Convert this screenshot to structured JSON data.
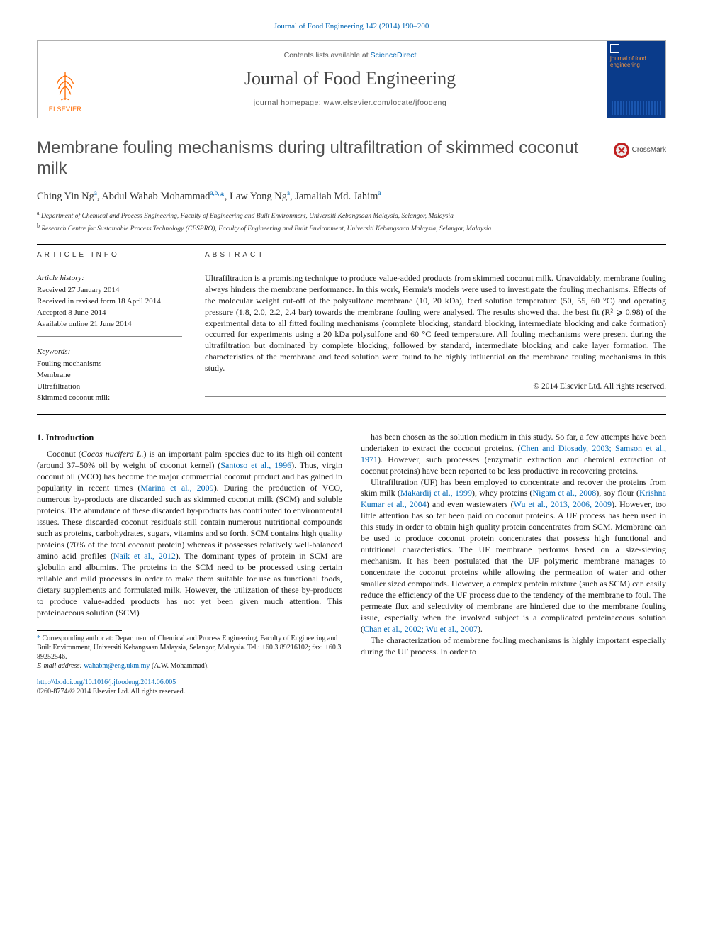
{
  "journal_ref": "Journal of Food Engineering 142 (2014) 190–200",
  "header": {
    "contents_prefix": "Contents lists available at ",
    "contents_link": "ScienceDirect",
    "journal_name": "Journal of Food Engineering",
    "homepage_prefix": "journal homepage: ",
    "homepage_url": "www.elsevier.com/locate/jfoodeng",
    "publisher": "ELSEVIER",
    "cover_label": "journal of food engineering"
  },
  "crossmark_label": "CrossMark",
  "title": "Membrane fouling mechanisms during ultrafiltration of skimmed coconut milk",
  "authors_html": "Ching Yin Ng<sup>a</sup>, Abdul Wahab Mohammad<sup>a,b,</sup><span class='corr'>*</span>, Law Yong Ng<sup>a</sup>, Jamaliah Md. Jahim<sup>a</sup>",
  "affiliations": [
    {
      "sup": "a",
      "text": "Department of Chemical and Process Engineering, Faculty of Engineering and Built Environment, Universiti Kebangsaan Malaysia, Selangor, Malaysia"
    },
    {
      "sup": "b",
      "text": "Research Centre for Sustainable Process Technology (CESPRO), Faculty of Engineering and Built Environment, Universiti Kebangsaan Malaysia, Selangor, Malaysia"
    }
  ],
  "info_head": "ARTICLE INFO",
  "abs_head": "ABSTRACT",
  "history_head": "Article history:",
  "history": [
    "Received 27 January 2014",
    "Received in revised form 18 April 2014",
    "Accepted 8 June 2014",
    "Available online 21 June 2014"
  ],
  "keywords_head": "Keywords:",
  "keywords": [
    "Fouling mechanisms",
    "Membrane",
    "Ultrafiltration",
    "Skimmed coconut milk"
  ],
  "abstract": "Ultrafiltration is a promising technique to produce value-added products from skimmed coconut milk. Unavoidably, membrane fouling always hinders the membrane performance. In this work, Hermia's models were used to investigate the fouling mechanisms. Effects of the molecular weight cut-off of the polysulfone membrane (10, 20 kDa), feed solution temperature (50, 55, 60 °C) and operating pressure (1.8, 2.0, 2.2, 2.4 bar) towards the membrane fouling were analysed. The results showed that the best fit (R² ⩾ 0.98) of the experimental data to all fitted fouling mechanisms (complete blocking, standard blocking, intermediate blocking and cake formation) occurred for experiments using a 20 kDa polysulfone and 60 °C feed temperature. All fouling mechanisms were present during the ultrafiltration but dominated by complete blocking, followed by standard, intermediate blocking and cake layer formation. The characteristics of the membrane and feed solution were found to be highly influential on the membrane fouling mechanisms in this study.",
  "copyright": "© 2014 Elsevier Ltd. All rights reserved.",
  "section_heading": "1. Introduction",
  "para1_html": "Coconut (<i>Cocos nucifera L.</i>) is an important palm species due to its high oil content (around 37–50% oil by weight of coconut kernel) (<span class='link'>Santoso et al., 1996</span>). Thus, virgin coconut oil (VCO) has become the major commercial coconut product and has gained in popularity in recent times (<span class='link'>Marina et al., 2009</span>). During the production of VCO, numerous by-products are discarded such as skimmed coconut milk (SCM) and soluble proteins. The abundance of these discarded by-products has contributed to environmental issues. These discarded coconut residuals still contain numerous nutritional compounds such as proteins, carbohydrates, sugars, vitamins and so forth. SCM contains high quality proteins (70% of the total coconut protein) whereas it possesses relatively well-balanced amino acid profiles (<span class='link'>Naik et al., 2012</span>). The dominant types of protein in SCM are globulin and albumins. The proteins in the SCM need to be processed using certain reliable and mild processes in order to make them suitable for use as functional foods, dietary supplements and formulated milk. However, the utilization of these by-products to produce value-added products has not yet been given much attention. This proteinaceous solution (SCM)",
  "para1b_html": "has been chosen as the solution medium in this study. So far, a few attempts have been undertaken to extract the coconut proteins. (<span class='link'>Chen and Diosady, 2003; Samson et al., 1971</span>). However, such processes (enzymatic extraction and chemical extraction of coconut proteins) have been reported to be less productive in recovering proteins.",
  "para2_html": "Ultrafiltration (UF) has been employed to concentrate and recover the proteins from skim milk (<span class='link'>Makardij et al., 1999</span>), whey proteins (<span class='link'>Nigam et al., 2008</span>), soy flour (<span class='link'>Krishna Kumar et al., 2004</span>) and even wastewaters (<span class='link'>Wu et al., 2013, 2006, 2009</span>). However, too little attention has so far been paid on coconut proteins. A UF process has been used in this study in order to obtain high quality protein concentrates from SCM. Membrane can be used to produce coconut protein concentrates that possess high functional and nutritional characteristics. The UF membrane performs based on a size-sieving mechanism. It has been postulated that the UF polymeric membrane manages to concentrate the coconut proteins while allowing the permeation of water and other smaller sized compounds. However, a complex protein mixture (such as SCM) can easily reduce the efficiency of the UF process due to the tendency of the membrane to foul. The permeate flux and selectivity of membrane are hindered due to the membrane fouling issue, especially when the involved subject is a complicated proteinaceous solution (<span class='link'>Chan et al., 2002; Wu et al., 2007</span>).",
  "para3_html": "The characterization of membrane fouling mechanisms is highly important especially during the UF process. In order to",
  "footnote": {
    "corr_html": "<span class='corr-mark'>*</span> Corresponding author at: Department of Chemical and Process Engineering, Faculty of Engineering and Built Environment, Universiti Kebangsaan Malaysia, Selangor, Malaysia. Tel.: +60 3 89216102; fax: +60 3 89252546.",
    "email_label": "E-mail address:",
    "email": "wahabm@eng.ukm.my",
    "email_person": "(A.W. Mohammad)."
  },
  "doi": "http://dx.doi.org/10.1016/j.jfoodeng.2014.06.005",
  "issn_line": "0260-8774/© 2014 Elsevier Ltd. All rights reserved.",
  "colors": {
    "link": "#0066b3",
    "elsevier_orange": "#ff6a00",
    "cover_bg": "#0a3b8a",
    "cover_accent": "#ff9a3c",
    "crossmark_ring": "#c02020",
    "text": "#1a1a1a",
    "title_gray": "#505050"
  },
  "typography": {
    "body_pt": 12,
    "title_pt": 24,
    "journal_name_pt": 26,
    "authors_pt": 14.5,
    "affil_pt": 9.5,
    "section_head_pt": 10,
    "footnote_pt": 10
  }
}
